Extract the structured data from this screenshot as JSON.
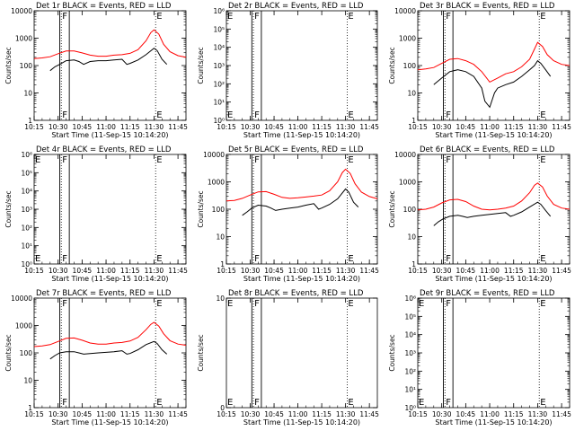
{
  "xtick_labels": [
    "10:15",
    "10:30",
    "10:45",
    "11:00",
    "11:15",
    "11:30",
    "11:45"
  ],
  "xlabel": "Start Time (11-Sep-15 10:14:20)",
  "ylabel": "Counts/sec",
  "colors": {
    "events": "#000000",
    "lld": "#ff0000"
  },
  "chart_data": [
    {
      "type": "line",
      "title": "Det 1r BLACK = Events, RED = LLD",
      "yscale": "log",
      "ylim": [
        1,
        10000
      ],
      "ytick_labels": [
        "1",
        "10",
        "100",
        "1000",
        "10000"
      ],
      "xlim": [
        "10:15",
        "11:50"
      ],
      "vlines_solid": [
        "10:31",
        "10:37"
      ],
      "vlines_dotted": [
        "10:32",
        "11:31"
      ],
      "flags": [
        {
          "text": "F",
          "x": "10:32"
        },
        {
          "text": "E",
          "x": "11:31"
        }
      ],
      "series": [
        {
          "color": "#ff0000",
          "x": [
            "10:15",
            "10:20",
            "10:25",
            "10:30",
            "10:35",
            "10:40",
            "10:45",
            "10:50",
            "10:55",
            "11:00",
            "11:05",
            "11:10",
            "11:15",
            "11:20",
            "11:25",
            "11:28",
            "11:30",
            "11:33",
            "11:36",
            "11:40",
            "11:45",
            "11:50"
          ],
          "y": [
            180,
            190,
            210,
            270,
            340,
            340,
            290,
            240,
            220,
            220,
            240,
            250,
            280,
            380,
            800,
            1600,
            2000,
            1400,
            600,
            320,
            230,
            200
          ]
        },
        {
          "color": "#000000",
          "x": [
            "10:25",
            "10:28",
            "10:31",
            "10:35",
            "10:40",
            "10:43",
            "10:46",
            "10:50",
            "10:55",
            "11:00",
            "11:05",
            "11:10",
            "11:13",
            "11:15",
            "11:20",
            "11:25",
            "11:30",
            "11:32",
            "11:35",
            "11:38"
          ],
          "y": [
            65,
            90,
            110,
            150,
            160,
            140,
            110,
            140,
            150,
            150,
            160,
            170,
            110,
            120,
            160,
            250,
            430,
            350,
            170,
            110
          ]
        }
      ]
    },
    {
      "type": "line",
      "title": "Det 2r BLACK = Events, RED = LLD",
      "yscale": "log",
      "ylim": [
        1,
        1000000
      ],
      "ytick_labels": [
        "10⁰",
        "10¹",
        "10²",
        "10³",
        "10⁴",
        "10⁵",
        "10⁶"
      ],
      "xlim": [
        "10:15",
        "11:50"
      ],
      "vlines_solid": [
        "10:31",
        "10:37"
      ],
      "vlines_dotted": [
        "10:32",
        "11:31"
      ],
      "flags": [
        {
          "text": "E",
          "x": "10:15"
        },
        {
          "text": "F",
          "x": "10:32"
        },
        {
          "text": "E",
          "x": "11:31"
        }
      ],
      "series": []
    },
    {
      "type": "line",
      "title": "Det 3r BLACK = Events, RED = LLD",
      "yscale": "log",
      "ylim": [
        1,
        10000
      ],
      "ytick_labels": [
        "1",
        "10",
        "100",
        "1000",
        "10000"
      ],
      "xlim": [
        "10:15",
        "11:50"
      ],
      "vlines_solid": [
        "10:31",
        "10:37"
      ],
      "vlines_dotted": [
        "10:32",
        "11:31"
      ],
      "flags": [
        {
          "text": "F",
          "x": "10:32"
        },
        {
          "text": "E",
          "x": "11:31"
        }
      ],
      "series": [
        {
          "color": "#ff0000",
          "x": [
            "10:15",
            "10:20",
            "10:25",
            "10:30",
            "10:35",
            "10:40",
            "10:45",
            "10:50",
            "10:55",
            "11:00",
            "11:05",
            "11:10",
            "11:15",
            "11:20",
            "11:25",
            "11:28",
            "11:30",
            "11:33",
            "11:36",
            "11:40",
            "11:45",
            "11:50"
          ],
          "y": [
            70,
            75,
            85,
            120,
            170,
            180,
            150,
            110,
            60,
            25,
            35,
            50,
            60,
            90,
            170,
            400,
            700,
            500,
            250,
            150,
            110,
            100
          ]
        },
        {
          "color": "#000000",
          "x": [
            "10:25",
            "10:30",
            "10:35",
            "10:40",
            "10:45",
            "10:50",
            "10:55",
            "10:57",
            "11:00",
            "11:03",
            "11:05",
            "11:10",
            "11:15",
            "11:20",
            "11:25",
            "11:28",
            "11:30",
            "11:32",
            "11:35",
            "11:38"
          ],
          "y": [
            20,
            35,
            60,
            70,
            60,
            40,
            15,
            5,
            3,
            10,
            15,
            20,
            25,
            40,
            70,
            100,
            150,
            120,
            70,
            40
          ]
        }
      ]
    },
    {
      "type": "line",
      "title": "Det 4r BLACK = Events, RED = LLD",
      "yscale": "log",
      "ylim": [
        1,
        1000000
      ],
      "ytick_labels": [
        "10⁰",
        "10¹",
        "10²",
        "10³",
        "10⁴",
        "10⁵",
        "10⁶"
      ],
      "xlim": [
        "10:15",
        "11:50"
      ],
      "vlines_solid": [
        "10:31",
        "10:37"
      ],
      "vlines_dotted": [
        "10:32",
        "11:31"
      ],
      "flags": [
        {
          "text": "E",
          "x": "10:15"
        },
        {
          "text": "F",
          "x": "10:32"
        },
        {
          "text": "E",
          "x": "11:31"
        }
      ],
      "series": []
    },
    {
      "type": "line",
      "title": "Det 5r BLACK = Events, RED = LLD",
      "yscale": "log",
      "ylim": [
        1,
        10000
      ],
      "ytick_labels": [
        "1",
        "10",
        "100",
        "1000",
        "10000"
      ],
      "xlim": [
        "10:15",
        "11:50"
      ],
      "vlines_solid": [
        "10:31",
        "10:37"
      ],
      "vlines_dotted": [
        "10:32",
        "11:31"
      ],
      "flags": [
        {
          "text": "F",
          "x": "10:32"
        },
        {
          "text": "E",
          "x": "11:31"
        }
      ],
      "series": [
        {
          "color": "#ff0000",
          "x": [
            "10:15",
            "10:20",
            "10:25",
            "10:30",
            "10:35",
            "10:40",
            "10:45",
            "10:50",
            "10:55",
            "11:00",
            "11:05",
            "11:10",
            "11:15",
            "11:20",
            "11:25",
            "11:28",
            "11:30",
            "11:33",
            "11:36",
            "11:40",
            "11:45",
            "11:50"
          ],
          "y": [
            200,
            210,
            250,
            330,
            430,
            440,
            350,
            270,
            250,
            260,
            280,
            300,
            330,
            470,
            1000,
            2200,
            2900,
            2000,
            850,
            420,
            290,
            240
          ]
        },
        {
          "color": "#000000",
          "x": [
            "10:25",
            "10:28",
            "10:31",
            "10:35",
            "10:40",
            "10:43",
            "10:46",
            "10:50",
            "10:55",
            "11:00",
            "11:05",
            "11:10",
            "11:13",
            "11:15",
            "11:20",
            "11:25",
            "11:30",
            "11:32",
            "11:35",
            "11:38"
          ],
          "y": [
            60,
            80,
            110,
            140,
            130,
            110,
            90,
            100,
            110,
            120,
            140,
            160,
            100,
            110,
            150,
            240,
            550,
            420,
            180,
            120
          ]
        }
      ]
    },
    {
      "type": "line",
      "title": "Det 6r BLACK = Events, RED = LLD",
      "yscale": "log",
      "ylim": [
        1,
        10000
      ],
      "ytick_labels": [
        "1",
        "10",
        "100",
        "1000",
        "10000"
      ],
      "xlim": [
        "10:15",
        "11:50"
      ],
      "vlines_solid": [
        "10:31",
        "10:37"
      ],
      "vlines_dotted": [
        "10:32",
        "11:31"
      ],
      "flags": [
        {
          "text": "F",
          "x": "10:32"
        },
        {
          "text": "E",
          "x": "11:31"
        }
      ],
      "series": [
        {
          "color": "#ff0000",
          "x": [
            "10:15",
            "10:20",
            "10:25",
            "10:30",
            "10:35",
            "10:40",
            "10:45",
            "10:50",
            "10:55",
            "11:00",
            "11:05",
            "11:10",
            "11:15",
            "11:20",
            "11:25",
            "11:28",
            "11:30",
            "11:33",
            "11:36",
            "11:40",
            "11:45",
            "11:50"
          ],
          "y": [
            95,
            100,
            120,
            170,
            220,
            230,
            190,
            130,
            100,
            95,
            100,
            110,
            130,
            200,
            400,
            750,
            900,
            650,
            300,
            150,
            110,
            100
          ]
        },
        {
          "color": "#000000",
          "x": [
            "10:25",
            "10:28",
            "10:31",
            "10:35",
            "10:40",
            "10:43",
            "10:46",
            "10:50",
            "10:55",
            "11:00",
            "11:05",
            "11:10",
            "11:13",
            "11:15",
            "11:20",
            "11:25",
            "11:30",
            "11:32",
            "11:35",
            "11:38"
          ],
          "y": [
            25,
            35,
            45,
            55,
            60,
            55,
            50,
            55,
            60,
            65,
            70,
            75,
            55,
            60,
            80,
            120,
            180,
            150,
            90,
            55
          ]
        }
      ]
    },
    {
      "type": "line",
      "title": "Det 7r BLACK = Events, RED = LLD",
      "yscale": "log",
      "ylim": [
        1,
        10000
      ],
      "ytick_labels": [
        "1",
        "10",
        "100",
        "1000",
        "10000"
      ],
      "xlim": [
        "10:15",
        "11:50"
      ],
      "vlines_solid": [
        "10:31",
        "10:37"
      ],
      "vlines_dotted": [
        "10:32",
        "11:31"
      ],
      "flags": [
        {
          "text": "F",
          "x": "10:32"
        },
        {
          "text": "E",
          "x": "11:31"
        }
      ],
      "series": [
        {
          "color": "#ff0000",
          "x": [
            "10:15",
            "10:20",
            "10:25",
            "10:30",
            "10:35",
            "10:40",
            "10:45",
            "10:50",
            "10:55",
            "11:00",
            "11:05",
            "11:10",
            "11:15",
            "11:20",
            "11:25",
            "11:28",
            "11:30",
            "11:33",
            "11:36",
            "11:40",
            "11:45",
            "11:50"
          ],
          "y": [
            170,
            180,
            200,
            260,
            340,
            350,
            290,
            230,
            210,
            210,
            230,
            240,
            270,
            370,
            700,
            1100,
            1300,
            950,
            500,
            280,
            210,
            190
          ]
        },
        {
          "color": "#000000",
          "x": [
            "10:25",
            "10:28",
            "10:31",
            "10:35",
            "10:40",
            "10:43",
            "10:46",
            "10:50",
            "10:55",
            "11:00",
            "11:05",
            "11:10",
            "11:13",
            "11:15",
            "11:20",
            "11:25",
            "11:30",
            "11:32",
            "11:35",
            "11:38"
          ],
          "y": [
            60,
            80,
            100,
            110,
            110,
            100,
            90,
            95,
            100,
            105,
            110,
            120,
            90,
            95,
            130,
            200,
            260,
            220,
            130,
            90
          ]
        }
      ]
    },
    {
      "type": "line",
      "title": "Det 8r BLACK = Events, RED = LLD",
      "yscale": "linear",
      "ylim": [
        0,
        10
      ],
      "ytick_labels": [
        "0",
        "10"
      ],
      "xlim": [
        "10:15",
        "11:50"
      ],
      "vlines_solid": [
        "10:31",
        "10:37"
      ],
      "vlines_dotted": [
        "10:32",
        "11:31"
      ],
      "flags": [
        {
          "text": "E",
          "x": "10:15"
        },
        {
          "text": "F",
          "x": "10:32"
        },
        {
          "text": "E",
          "x": "11:31"
        }
      ],
      "series": []
    },
    {
      "type": "line",
      "title": "Det 9r BLACK = Events, RED = LLD",
      "yscale": "log",
      "ylim": [
        1,
        1000000
      ],
      "ytick_labels": [
        "10⁰",
        "10¹",
        "10²",
        "10³",
        "10⁴",
        "10⁵",
        "10⁶"
      ],
      "xlim": [
        "10:15",
        "11:50"
      ],
      "vlines_solid": [
        "10:31",
        "10:37"
      ],
      "vlines_dotted": [
        "10:32",
        "11:31"
      ],
      "flags": [
        {
          "text": "E",
          "x": "10:15"
        },
        {
          "text": "F",
          "x": "10:32"
        },
        {
          "text": "E",
          "x": "11:31"
        }
      ],
      "series": []
    }
  ]
}
